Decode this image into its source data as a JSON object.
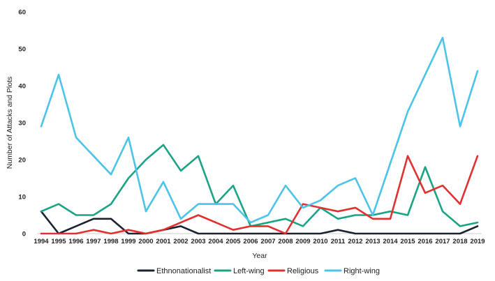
{
  "chart_data": {
    "type": "line",
    "xlabel": "Year",
    "ylabel": "Number of Attacks and Plots",
    "ylim": [
      0,
      60
    ],
    "yticks": [
      0,
      10,
      20,
      30,
      40,
      50,
      60
    ],
    "grid": false,
    "legend_position": "bottom",
    "categories": [
      "1994",
      "1995",
      "1996",
      "1997",
      "1998",
      "1999",
      "2000",
      "2001",
      "2002",
      "2003",
      "2004",
      "2005",
      "2006",
      "2007",
      "2008",
      "2009",
      "2010",
      "2011",
      "2012",
      "2013",
      "2014",
      "2015",
      "2016",
      "2017",
      "2018",
      "2019"
    ],
    "series": [
      {
        "name": "Ethnonationalist",
        "color": "#1b2333",
        "values": [
          6,
          0,
          2,
          4,
          4,
          0,
          0,
          1,
          2,
          0,
          0,
          0,
          0,
          0,
          0,
          0,
          0,
          1,
          0,
          0,
          0,
          0,
          0,
          0,
          0,
          2
        ]
      },
      {
        "name": "Left-wing",
        "color": "#1aa384",
        "values": [
          6,
          8,
          5,
          5,
          8,
          15,
          20,
          24,
          17,
          21,
          8,
          13,
          2,
          3,
          4,
          2,
          7,
          4,
          5,
          5,
          6,
          5,
          18,
          6,
          2,
          3
        ]
      },
      {
        "name": "Religious",
        "color": "#e03131",
        "values": [
          0,
          0,
          0,
          1,
          0,
          1,
          0,
          1,
          3,
          5,
          3,
          1,
          2,
          2,
          0,
          8,
          7,
          6,
          7,
          4,
          4,
          21,
          11,
          13,
          8,
          21
        ]
      },
      {
        "name": "Right-wing",
        "color": "#4cc3e8",
        "values": [
          29,
          43,
          26,
          21,
          16,
          26,
          6,
          14,
          4,
          8,
          8,
          8,
          3,
          5,
          13,
          7,
          9,
          13,
          15,
          5,
          19,
          33,
          43,
          53,
          29,
          44
        ]
      }
    ]
  }
}
